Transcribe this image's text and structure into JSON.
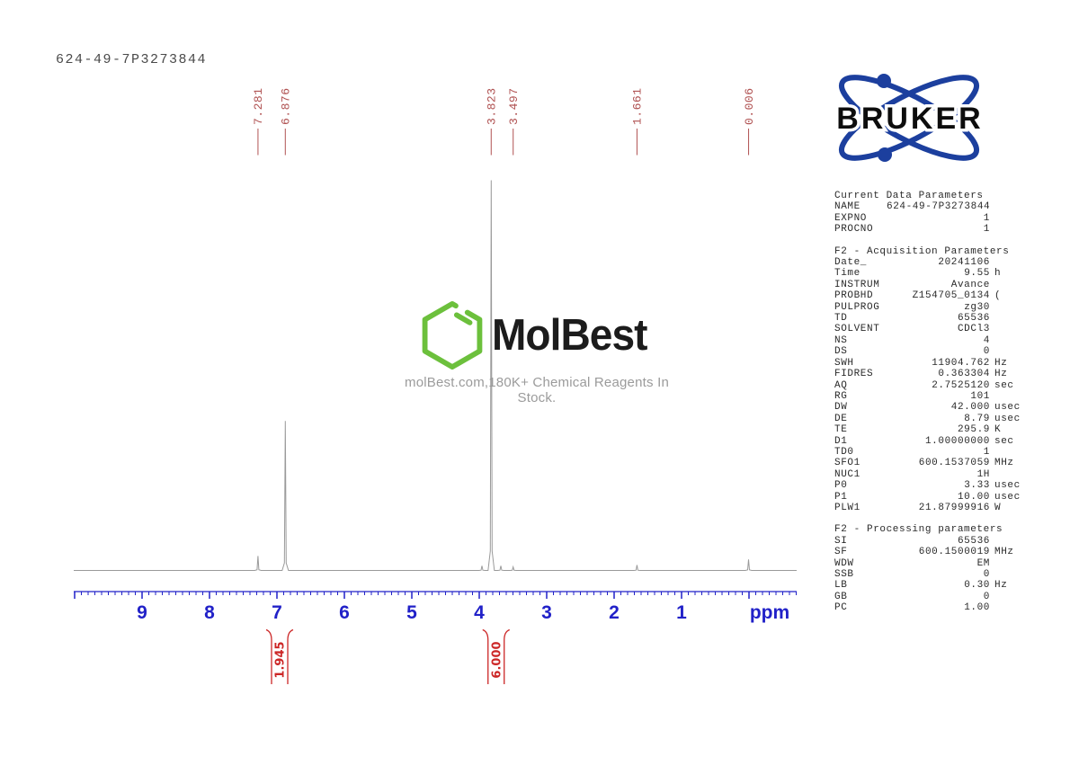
{
  "page_title": "624-49-7P3273844",
  "bruker": {
    "wordmark": "BRUKER",
    "brand_blue": "#1c3f9e"
  },
  "watermark": {
    "brand": "MolBest",
    "tagline": "molBest.com,180K+ Chemical Reagents In Stock.",
    "hexagon_green": "#6cc03c"
  },
  "chart_data": {
    "type": "line",
    "description": "1H NMR spectrum trace",
    "xlabel": "ppm",
    "x_unit_label": "ppm",
    "x_ticks": [
      9,
      8,
      7,
      6,
      5,
      4,
      3,
      2,
      1
    ],
    "x_range": [
      10.0,
      -0.7
    ],
    "x_axis_reversed": true,
    "grid": false,
    "peaks": [
      {
        "ppm": 7.281,
        "label": "7.281",
        "rel_intensity": 0.037
      },
      {
        "ppm": 6.876,
        "label": "6.876",
        "rel_intensity": 0.383
      },
      {
        "ppm": 3.96,
        "rel_intensity": 0.012
      },
      {
        "ppm": 3.823,
        "label": "3.823",
        "rel_intensity": 1.0
      },
      {
        "ppm": 3.68,
        "rel_intensity": 0.012
      },
      {
        "ppm": 3.497,
        "label": "3.497",
        "rel_intensity": 0.009
      },
      {
        "ppm": 1.661,
        "label": "1.661",
        "rel_intensity": 0.014
      },
      {
        "ppm": 0.006,
        "label": "0.006",
        "rel_intensity": 0.028
      }
    ],
    "integrals": [
      {
        "value": "1.945",
        "ppm_center": 6.96
      },
      {
        "value": "6.000",
        "ppm_center": 3.75
      }
    ],
    "colors": {
      "trace": "#9a9a9a",
      "axis": "#2121c8",
      "peak_labels": "#b05252",
      "integrals": "#cc2626"
    }
  },
  "parameters": {
    "sections": [
      {
        "header": "Current Data Parameters",
        "rows": [
          [
            "NAME",
            "624-49-7P3273844",
            ""
          ],
          [
            "EXPNO",
            "1",
            ""
          ],
          [
            "PROCNO",
            "1",
            ""
          ]
        ]
      },
      {
        "header": "F2 - Acquisition Parameters",
        "rows": [
          [
            "Date_",
            "20241106",
            ""
          ],
          [
            "Time",
            "9.55",
            "h"
          ],
          [
            "INSTRUM",
            "Avance",
            ""
          ],
          [
            "PROBHD",
            "Z154705_0134",
            "("
          ],
          [
            "PULPROG",
            "zg30",
            ""
          ],
          [
            "TD",
            "65536",
            ""
          ],
          [
            "SOLVENT",
            "CDCl3",
            ""
          ],
          [
            "NS",
            "4",
            ""
          ],
          [
            "DS",
            "0",
            ""
          ],
          [
            "SWH",
            "11904.762",
            "Hz"
          ],
          [
            "FIDRES",
            "0.363304",
            "Hz"
          ],
          [
            "AQ",
            "2.7525120",
            "sec"
          ],
          [
            "RG",
            "101",
            ""
          ],
          [
            "DW",
            "42.000",
            "usec"
          ],
          [
            "DE",
            "8.79",
            "usec"
          ],
          [
            "TE",
            "295.9",
            "K"
          ],
          [
            "D1",
            "1.00000000",
            "sec"
          ],
          [
            "TD0",
            "1",
            ""
          ],
          [
            "SFO1",
            "600.1537059",
            "MHz"
          ],
          [
            "NUC1",
            "1H",
            ""
          ],
          [
            "P0",
            "3.33",
            "usec"
          ],
          [
            "P1",
            "10.00",
            "usec"
          ],
          [
            "PLW1",
            "21.87999916",
            "W"
          ]
        ]
      },
      {
        "header": "F2 - Processing parameters",
        "rows": [
          [
            "SI",
            "65536",
            ""
          ],
          [
            "SF",
            "600.1500019",
            "MHz"
          ],
          [
            "WDW",
            "EM",
            ""
          ],
          [
            "SSB",
            "0",
            ""
          ],
          [
            "LB",
            "0.30",
            "Hz"
          ],
          [
            "GB",
            "0",
            ""
          ],
          [
            "PC",
            "1.00",
            ""
          ]
        ]
      }
    ]
  }
}
